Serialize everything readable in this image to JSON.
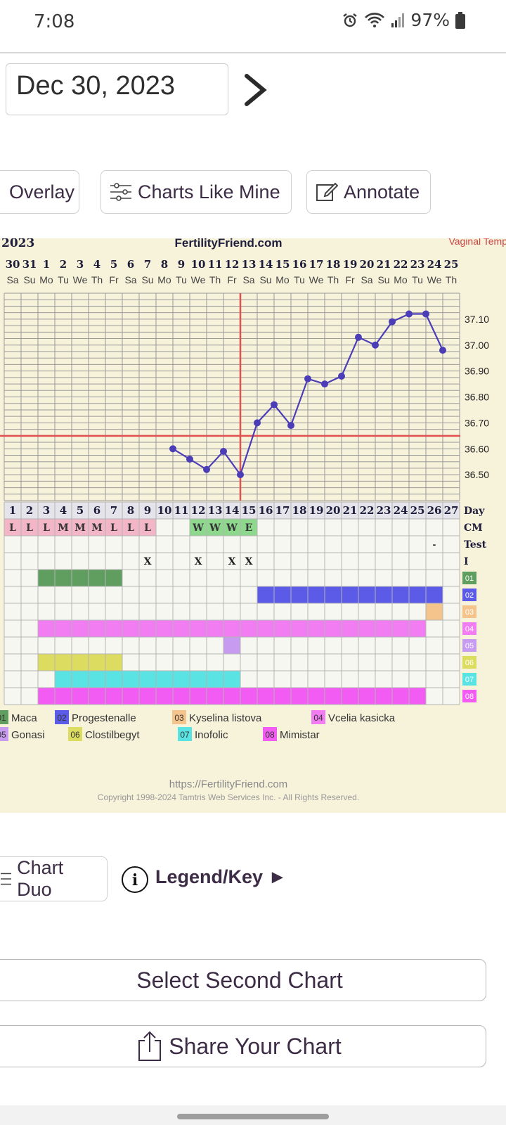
{
  "status_bar": {
    "time": "7:08",
    "battery": "97%"
  },
  "date_selector": {
    "value": "Dec 30, 2023"
  },
  "toolbar": {
    "overlay_label": "Overlay",
    "charts_like_mine_label": "Charts Like Mine",
    "annotate_label": "Annotate"
  },
  "chart": {
    "year_label": "2023",
    "site_label": "FertilityFriend.com",
    "temp_type": "Vaginal Temp",
    "dates": [
      "30",
      "31",
      "1",
      "2",
      "3",
      "4",
      "5",
      "6",
      "7",
      "8",
      "9",
      "10",
      "11",
      "12",
      "13",
      "14",
      "15",
      "16",
      "17",
      "18",
      "19",
      "20",
      "21",
      "22",
      "23",
      "24",
      "25"
    ],
    "weekdays": [
      "Sa",
      "Su",
      "Mo",
      "Tu",
      "We",
      "Th",
      "Fr",
      "Sa",
      "Su",
      "Mo",
      "Tu",
      "We",
      "Th",
      "Fr",
      "Sa",
      "Su",
      "Mo",
      "Tu",
      "We",
      "Th",
      "Fr",
      "Sa",
      "Su",
      "Mo",
      "Tu",
      "We",
      "Th"
    ],
    "cycle_days": [
      "1",
      "2",
      "3",
      "4",
      "5",
      "6",
      "7",
      "8",
      "9",
      "10",
      "11",
      "12",
      "13",
      "14",
      "15",
      "16",
      "17",
      "18",
      "19",
      "20",
      "21",
      "22",
      "23",
      "24",
      "25",
      "26",
      "27"
    ],
    "row_labels": {
      "day": "Day",
      "cm": "CM",
      "test": "Test",
      "intercourse": "I"
    },
    "cm_values": [
      "L",
      "L",
      "L",
      "M",
      "M",
      "M",
      "L",
      "L",
      "L",
      "",
      "",
      "W",
      "W",
      "W",
      "E",
      "",
      "",
      "",
      "",
      "",
      "",
      "",
      "",
      "",
      "",
      "",
      ""
    ],
    "test_values": [
      "",
      "",
      "",
      "",
      "",
      "",
      "",
      "",
      "",
      "",
      "",
      "",
      "",
      "",
      "",
      "",
      "",
      "",
      "",
      "",
      "",
      "",
      "",
      "",
      "",
      "-",
      ""
    ],
    "intercourse_values": [
      "",
      "",
      "",
      "",
      "",
      "",
      "",
      "",
      "X",
      "",
      "",
      "X",
      "",
      "X",
      "X",
      "",
      "",
      "",
      "",
      "",
      "",
      "",
      "",
      "",
      "",
      "",
      ""
    ],
    "footer_url": "https://FertilityFriend.com",
    "copyright": "Copyright 1998-2024 Tamtris Web Services Inc. - All Rights Reserved."
  },
  "chart_data": {
    "type": "line",
    "x_cycle_days": [
      11,
      12,
      13,
      14,
      15,
      16,
      17,
      18,
      19,
      20,
      21,
      22,
      23,
      24,
      25,
      26,
      27
    ],
    "temps": [
      36.6,
      36.56,
      36.52,
      36.59,
      36.5,
      36.7,
      36.77,
      36.69,
      36.87,
      36.85,
      36.88,
      37.03,
      37.0,
      37.09,
      37.12,
      37.12,
      36.98
    ],
    "ovulation_day": 15,
    "coverline": 36.65,
    "ylim": [
      36.4,
      37.2
    ],
    "yticks": [
      "37.10",
      "37.00",
      "36.90",
      "36.80",
      "36.70",
      "36.60",
      "36.50"
    ],
    "grid": true
  },
  "supplements": [
    {
      "code": "01",
      "name": "Maca",
      "color": "#5f9e5f",
      "days": [
        3,
        7
      ]
    },
    {
      "code": "02",
      "name": "Progestenalle",
      "color": "#5b5be8",
      "days": [
        16,
        26
      ]
    },
    {
      "code": "03",
      "name": "Kyselina listova",
      "color": "#f5c48d",
      "days": [
        26,
        26
      ]
    },
    {
      "code": "04",
      "name": "Vcelia kasicka",
      "color": "#f27cf2",
      "days": [
        3,
        25
      ]
    },
    {
      "code": "05",
      "name": "Gonasi",
      "color": "#c79bf0",
      "days": [
        14,
        14
      ]
    },
    {
      "code": "06",
      "name": "Clostilbegyt",
      "color": "#dcdc60",
      "days": [
        3,
        7
      ]
    },
    {
      "code": "07",
      "name": "Inofolic",
      "color": "#5ae3e3",
      "days": [
        4,
        14
      ]
    },
    {
      "code": "08",
      "name": "Mimistar",
      "color": "#f25cf2",
      "days": [
        3,
        25
      ]
    }
  ],
  "bottom": {
    "chart_duo_label": "Chart Duo",
    "legend_key_label": "Legend/Key ►",
    "select_second_chart_label": "Select Second Chart",
    "share_chart_label": "Share Your Chart"
  }
}
